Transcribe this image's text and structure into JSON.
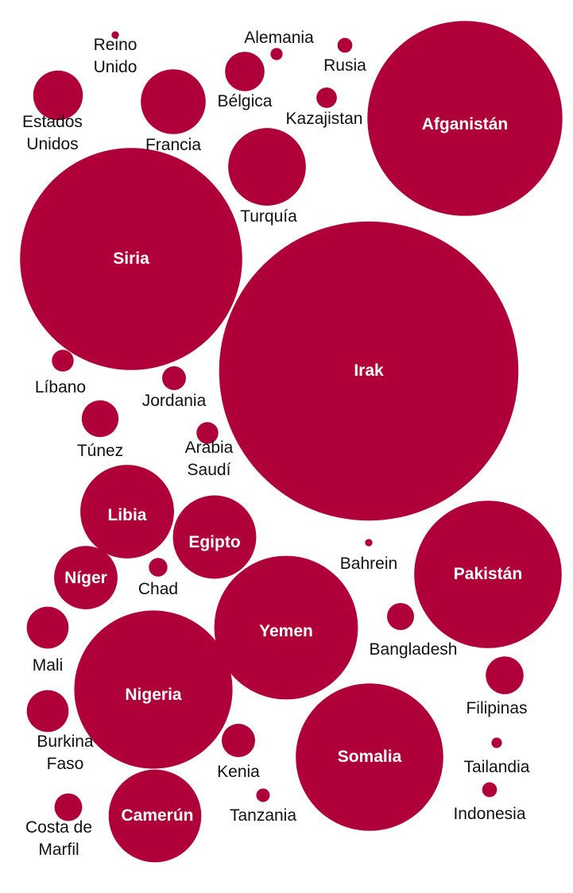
{
  "chart_data": {
    "type": "bubble",
    "title": "",
    "bubble_color": "#b0003a",
    "inside_label_color": "#ffffff",
    "outside_label_color": "#111111",
    "items": [
      {
        "name": "Irak",
        "lines": [
          "Irak"
        ],
        "value": 4900,
        "inside": true
      },
      {
        "name": "Siria",
        "lines": [
          "Siria"
        ],
        "value": 2700,
        "inside": true
      },
      {
        "name": "Afganistán",
        "lines": [
          "Afganistán"
        ],
        "value": 2080,
        "inside": true
      },
      {
        "name": "Nigeria",
        "lines": [
          "Nigeria"
        ],
        "value": 1370,
        "inside": true
      },
      {
        "name": "Pakistán",
        "lines": [
          "Pakistán"
        ],
        "value": 1190,
        "inside": true
      },
      {
        "name": "Yemen",
        "lines": [
          "Yemen"
        ],
        "value": 1130,
        "inside": true
      },
      {
        "name": "Somalia",
        "lines": [
          "Somalia"
        ],
        "value": 1190,
        "inside": true
      },
      {
        "name": "Libia",
        "lines": [
          "Libia"
        ],
        "value": 480,
        "inside": true
      },
      {
        "name": "Camerún",
        "lines": [
          "Camerún"
        ],
        "value": 470,
        "inside": true
      },
      {
        "name": "Egipto",
        "lines": [
          "Egipto"
        ],
        "value": 380,
        "inside": true
      },
      {
        "name": "Turquía",
        "lines": [
          "Turquía"
        ],
        "value": 330,
        "inside": false
      },
      {
        "name": "Níger",
        "lines": [
          "Níger"
        ],
        "value": 220,
        "inside": true
      },
      {
        "name": "Francia",
        "lines": [
          "Francia"
        ],
        "value": 230,
        "inside": false
      },
      {
        "name": "Estados Unidos",
        "lines": [
          "Estados",
          "Unidos"
        ],
        "value": 135,
        "inside": false
      },
      {
        "name": "Bélgica",
        "lines": [
          "Bélgica"
        ],
        "value": 85,
        "inside": false
      },
      {
        "name": "Túnez",
        "lines": [
          "Túnez"
        ],
        "value": 74,
        "inside": false
      },
      {
        "name": "Mali",
        "lines": [
          "Mali"
        ],
        "value": 96,
        "inside": false
      },
      {
        "name": "Burkina Faso",
        "lines": [
          "Burkina",
          "Faso"
        ],
        "value": 96,
        "inside": false
      },
      {
        "name": "Filipinas",
        "lines": [
          "Filipinas"
        ],
        "value": 78,
        "inside": false
      },
      {
        "name": "Kenia",
        "lines": [
          "Kenia"
        ],
        "value": 61,
        "inside": false
      },
      {
        "name": "Costa de Marfil",
        "lines": [
          "Costa de",
          "Marfil"
        ],
        "value": 42,
        "inside": false
      },
      {
        "name": "Bangladesh",
        "lines": [
          "Bangladesh"
        ],
        "value": 40,
        "inside": false
      },
      {
        "name": "Jordania",
        "lines": [
          "Jordania"
        ],
        "value": 31,
        "inside": false
      },
      {
        "name": "Líbano",
        "lines": [
          "Líbano"
        ],
        "value": 26,
        "inside": false
      },
      {
        "name": "Arabia Saudí",
        "lines": [
          "Arabia",
          "Saudí"
        ],
        "value": 26,
        "inside": false
      },
      {
        "name": "Kazajistan",
        "lines": [
          "Kazajistan"
        ],
        "value": 23,
        "inside": false
      },
      {
        "name": "Chad",
        "lines": [
          "Chad"
        ],
        "value": 19,
        "inside": false
      },
      {
        "name": "Indonesia",
        "lines": [
          "Indonesia"
        ],
        "value": 12,
        "inside": false
      },
      {
        "name": "Rusia",
        "lines": [
          "Rusia"
        ],
        "value": 12,
        "inside": false
      },
      {
        "name": "Tanzania",
        "lines": [
          "Tanzania"
        ],
        "value": 10,
        "inside": false
      },
      {
        "name": "Alemania",
        "lines": [
          "Alemania"
        ],
        "value": 8,
        "inside": false
      },
      {
        "name": "Tailandia",
        "lines": [
          "Tailandia"
        ],
        "value": 6,
        "inside": false
      },
      {
        "name": "Reino Unido",
        "lines": [
          "Reino",
          "Unido"
        ],
        "value": 3,
        "inside": false
      },
      {
        "name": "Bahrein",
        "lines": [
          "Bahrein"
        ],
        "value": 3,
        "inside": false
      }
    ]
  }
}
